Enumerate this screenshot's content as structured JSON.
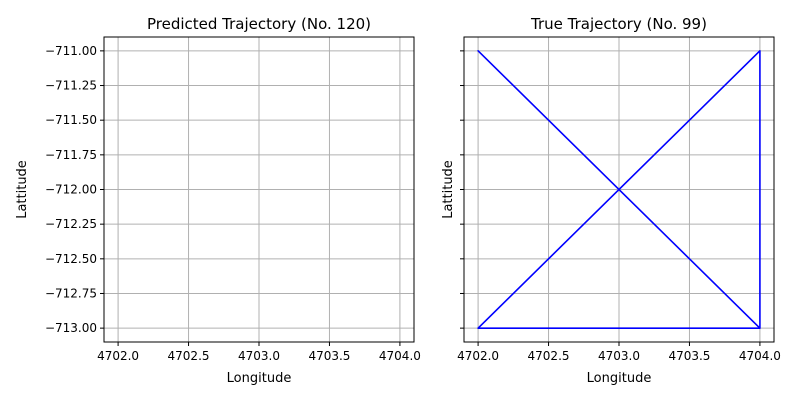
{
  "chart_data": [
    {
      "type": "line",
      "title": "Predicted Trajectory (No. 120)",
      "xlabel": "Longitude",
      "ylabel": "Lattitude",
      "xlim": [
        4701.9,
        4704.1
      ],
      "ylim": [
        -713.1,
        -710.9
      ],
      "xticks": [
        4702.0,
        4702.5,
        4703.0,
        4703.5,
        4704.0
      ],
      "xtick_labels": [
        "4702.0",
        "4702.5",
        "4703.0",
        "4703.5",
        "4704.0"
      ],
      "yticks": [
        -711.0,
        -711.25,
        -711.5,
        -711.75,
        -712.0,
        -712.25,
        -712.5,
        -712.75,
        -713.0
      ],
      "ytick_labels": [
        "−711.00",
        "−711.25",
        "−711.50",
        "−711.75",
        "−712.00",
        "−712.25",
        "−712.50",
        "−712.75",
        "−713.00"
      ],
      "grid": true,
      "series": [],
      "line_color": "#0000ff"
    },
    {
      "type": "line",
      "title": "True Trajectory (No. 99)",
      "xlabel": "Longitude",
      "ylabel": "Lattitude",
      "xlim": [
        4701.9,
        4704.1
      ],
      "ylim": [
        -713.1,
        -710.9
      ],
      "xticks": [
        4702.0,
        4702.5,
        4703.0,
        4703.5,
        4704.0
      ],
      "xtick_labels": [
        "4702.0",
        "4702.5",
        "4703.0",
        "4703.5",
        "4704.0"
      ],
      "yticks": [
        -711.0,
        -711.25,
        -711.5,
        -711.75,
        -712.0,
        -712.25,
        -712.5,
        -712.75,
        -713.0
      ],
      "ytick_labels": [],
      "grid": true,
      "series": [
        {
          "x": [
            4702,
            4704,
            4704,
            4702,
            4704,
            4704,
            4702
          ],
          "y": [
            -711,
            -713,
            -711,
            -713,
            -713,
            -713,
            -713
          ]
        }
      ],
      "line_color": "#0000ff"
    }
  ]
}
